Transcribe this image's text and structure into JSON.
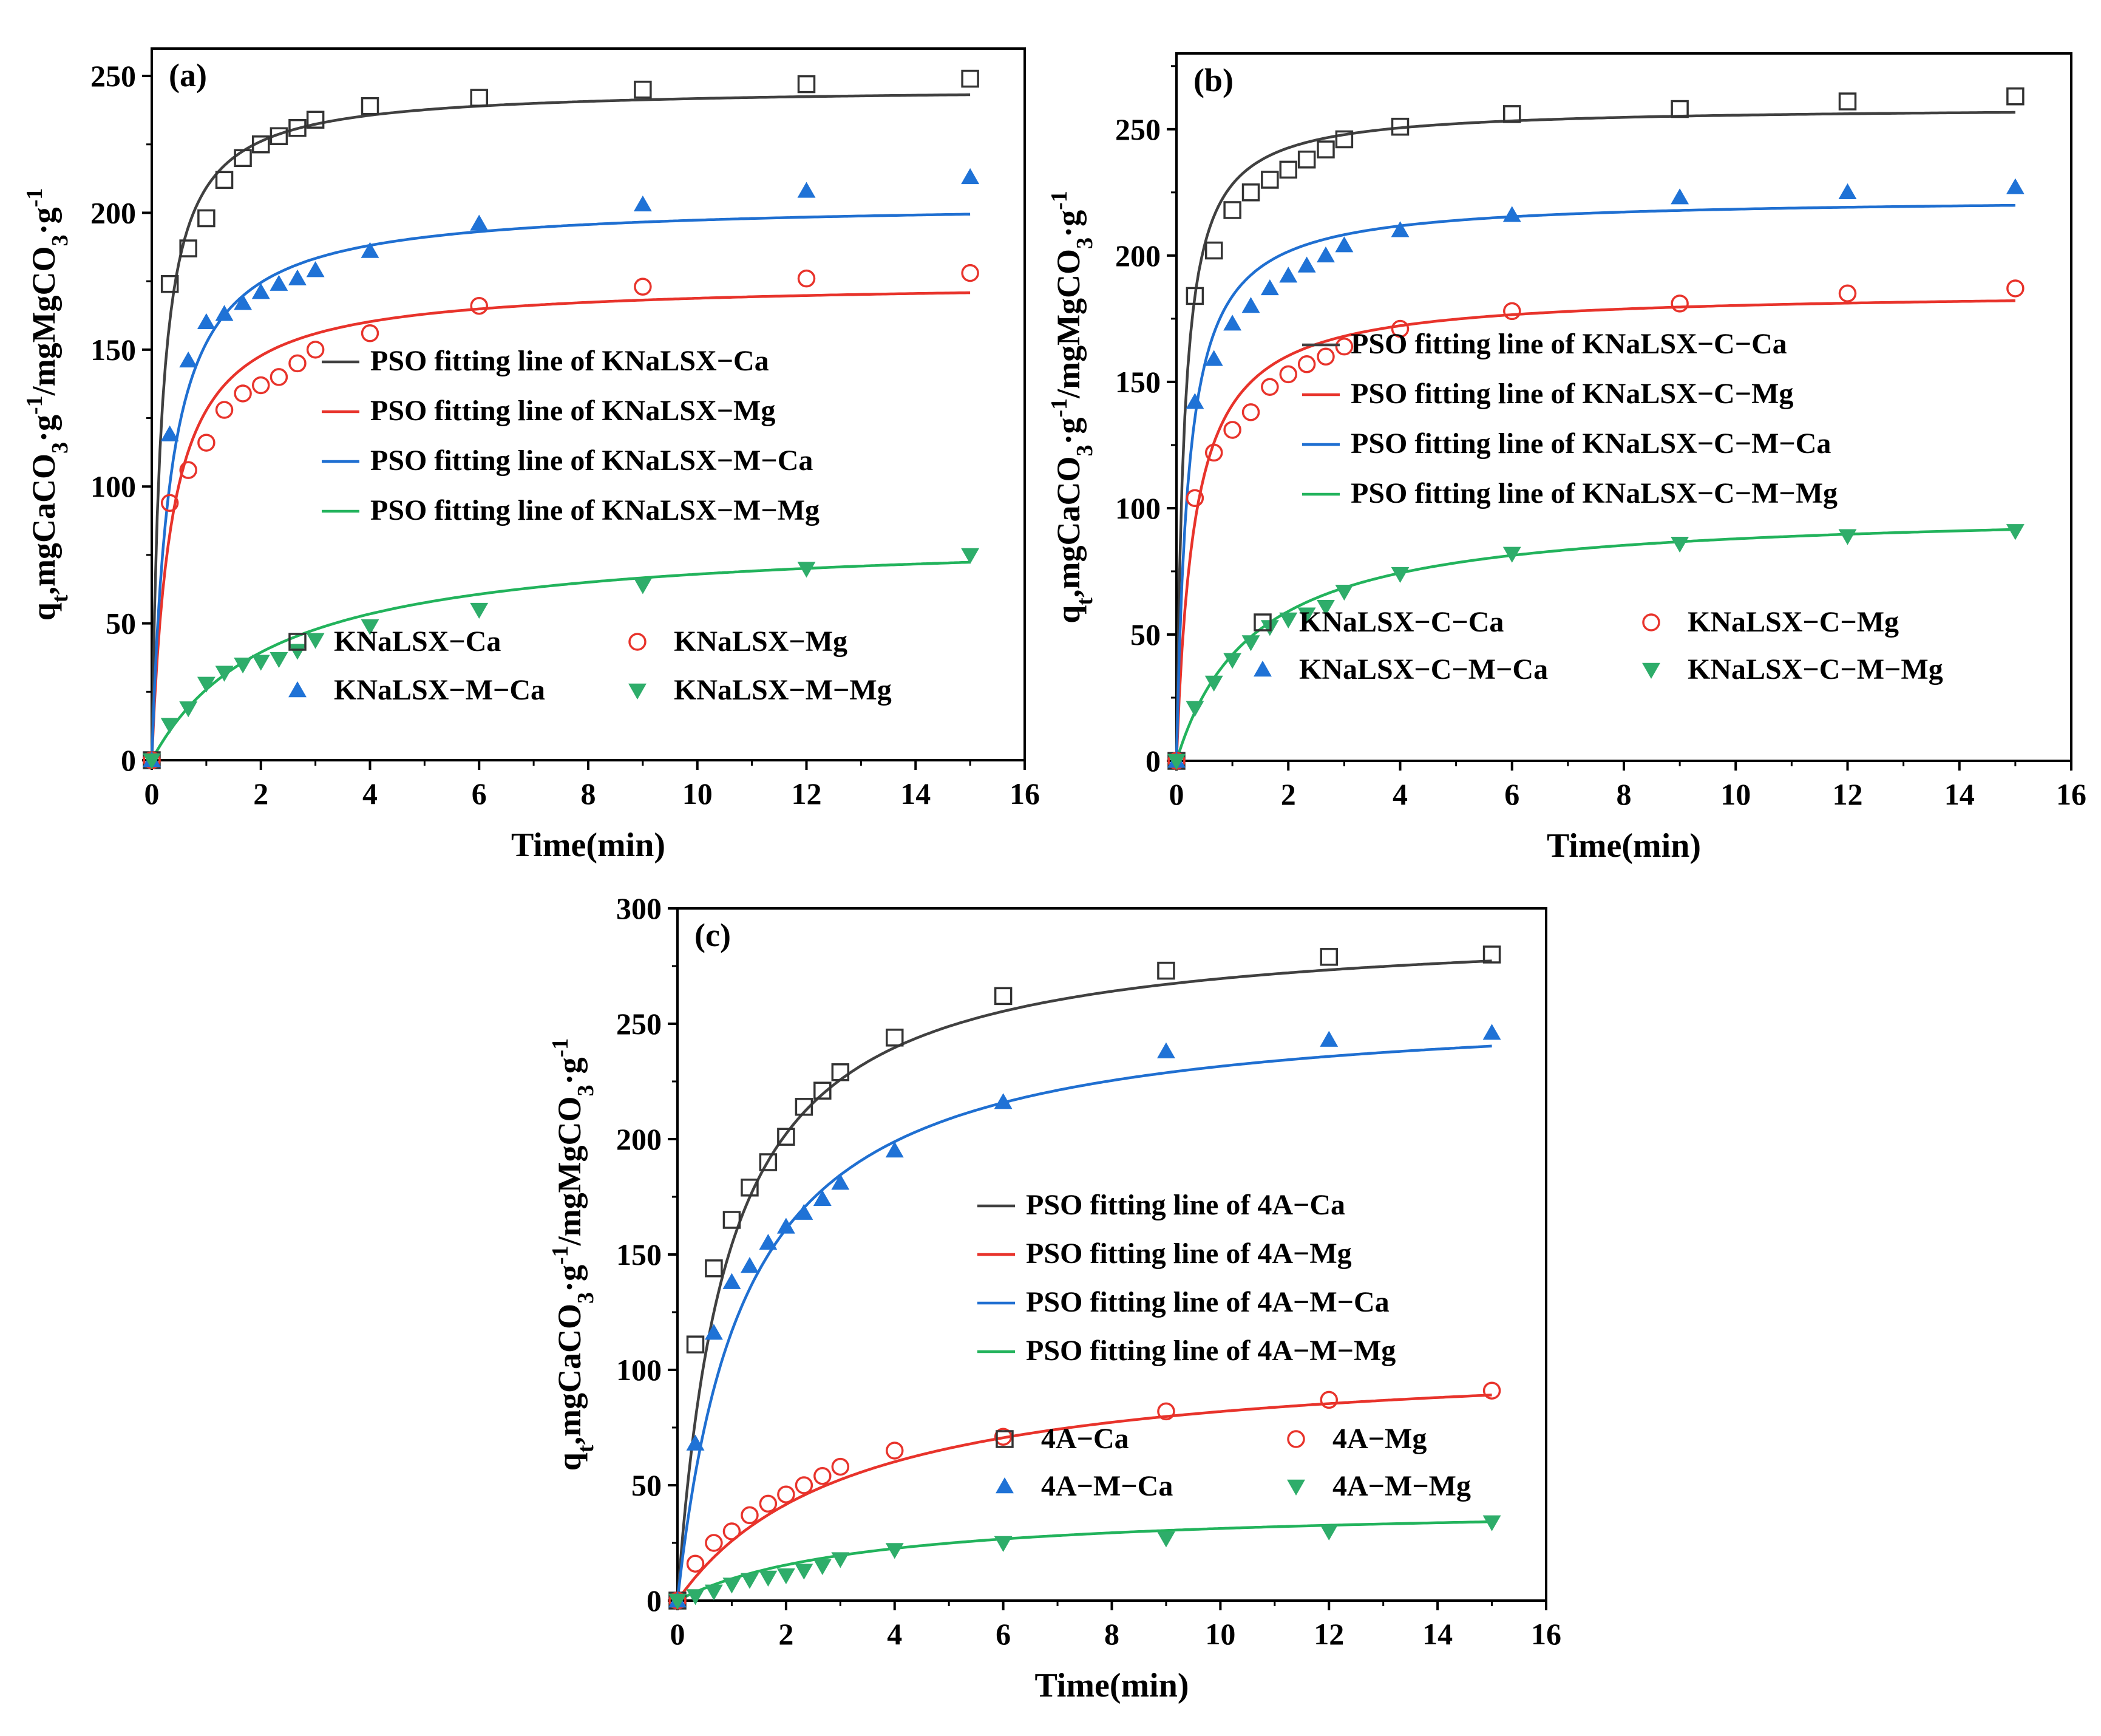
{
  "figure": {
    "background": "#ffffff",
    "panels_count": 3
  },
  "colors": {
    "Ca": "#404040",
    "Mg": "#e8332b",
    "MCa": "#1f6fd1",
    "MMg": "#22b35c",
    "MCa_marker": "#1f72d6",
    "MMg_marker": "#2ead6a"
  },
  "chart_data": [
    {
      "type": "scatter",
      "panel_label": "(a)",
      "xlabel": "Time(min)",
      "ylabel": "q_t,mgCaCO_3·g^-1/mgMgCO_3·g^-1",
      "xlim": [
        0,
        16
      ],
      "ylim": [
        0,
        260
      ],
      "xticks": [
        0,
        2,
        4,
        6,
        8,
        10,
        12,
        14,
        16
      ],
      "yticks": [
        0,
        50,
        100,
        150,
        200,
        250
      ],
      "grid": false,
      "fit_legend": [
        "PSO fitting line of KNaLSX−Ca",
        "PSO fitting line of KNaLSX−Mg",
        "PSO fitting line of KNaLSX−M−Ca",
        "PSO fitting line of KNaLSX−M−Mg"
      ],
      "series": [
        {
          "name": "KNaLSX−Ca",
          "key": "Ca",
          "marker": "square",
          "x": [
            0,
            0.33,
            0.67,
            1,
            1.33,
            1.67,
            2,
            2.33,
            2.67,
            3,
            4,
            6,
            9,
            12,
            15
          ],
          "y": [
            0,
            174,
            187,
            198,
            212,
            220,
            225,
            228,
            231,
            234,
            239,
            242,
            245,
            247,
            249
          ],
          "fit": {
            "qe": 246,
            "k": 0.0231
          }
        },
        {
          "name": "KNaLSX−Mg",
          "key": "Mg",
          "marker": "circle",
          "x": [
            0,
            0.33,
            0.67,
            1,
            1.33,
            1.67,
            2,
            2.33,
            2.67,
            3,
            4,
            6,
            9,
            12,
            15
          ],
          "y": [
            0,
            94,
            106,
            116,
            128,
            134,
            137,
            140,
            145,
            150,
            156,
            166,
            173,
            176,
            178
          ],
          "fit": {
            "qe": 175,
            "k": 0.0155
          }
        },
        {
          "name": "KNaLSX−M−Ca",
          "key": "MCa",
          "marker": "triangle-up",
          "x": [
            0,
            0.33,
            0.67,
            1,
            1.33,
            1.67,
            2,
            2.33,
            2.67,
            3,
            4,
            6,
            9,
            12,
            15
          ],
          "y": [
            0,
            119,
            146,
            160,
            163,
            167,
            171,
            174,
            176,
            179,
            186,
            196,
            203,
            208,
            213
          ],
          "fit": {
            "qe": 204,
            "k": 0.0145
          }
        },
        {
          "name": "KNaLSX−M−Mg",
          "key": "MMg",
          "marker": "triangle-down",
          "x": [
            0,
            0.33,
            0.67,
            1,
            1.33,
            1.67,
            2,
            2.33,
            2.67,
            3,
            4,
            6,
            9,
            12,
            15
          ],
          "y": [
            0,
            13,
            19,
            28,
            32,
            35,
            36,
            37,
            40,
            44,
            49,
            55,
            64,
            70,
            75
          ],
          "fit": {
            "qe": 83,
            "k": 0.00545
          }
        }
      ]
    },
    {
      "type": "scatter",
      "panel_label": "(b)",
      "xlabel": "Time(min)",
      "ylabel": "q_t,mgCaCO_3·g^-1/mgMgCO_3·g^-1",
      "xlim": [
        0,
        16
      ],
      "ylim": [
        0,
        280
      ],
      "xticks": [
        0,
        2,
        4,
        6,
        8,
        10,
        12,
        14,
        16
      ],
      "yticks": [
        0,
        50,
        100,
        150,
        200,
        250
      ],
      "grid": false,
      "fit_legend": [
        "PSO fitting line of KNaLSX−C−Ca",
        "PSO fitting line of KNaLSX−C−Mg",
        "PSO fitting line of KNaLSX−C−M−Ca",
        "PSO fitting line of KNaLSX−C−M−Mg"
      ],
      "series": [
        {
          "name": "KNaLSX−C−Ca",
          "key": "Ca",
          "marker": "square",
          "x": [
            0,
            0.33,
            0.67,
            1,
            1.33,
            1.67,
            2,
            2.33,
            2.67,
            3,
            4,
            6,
            9,
            12,
            15
          ],
          "y": [
            0,
            184,
            202,
            218,
            225,
            230,
            234,
            238,
            242,
            246,
            251,
            256,
            258,
            261,
            263
          ],
          "fit": {
            "qe": 259,
            "k": 0.0286
          }
        },
        {
          "name": "KNaLSX−C−Mg",
          "key": "Mg",
          "marker": "circle",
          "x": [
            0,
            0.33,
            0.67,
            1,
            1.33,
            1.67,
            2,
            2.33,
            2.67,
            3,
            4,
            6,
            9,
            12,
            15
          ],
          "y": [
            0,
            104,
            122,
            131,
            138,
            148,
            153,
            157,
            160,
            164,
            171,
            178,
            181,
            185,
            187
          ],
          "fit": {
            "qe": 186,
            "k": 0.0168
          }
        },
        {
          "name": "KNaLSX−C−M−Ca",
          "key": "MCa",
          "marker": "triangle-up",
          "x": [
            0,
            0.33,
            0.67,
            1,
            1.33,
            1.67,
            2,
            2.33,
            2.67,
            3,
            4,
            6,
            9,
            12,
            15
          ],
          "y": [
            0,
            142,
            159,
            173,
            180,
            187,
            192,
            196,
            200,
            204,
            210,
            216,
            223,
            225,
            227
          ],
          "fit": {
            "qe": 223,
            "k": 0.0211
          }
        },
        {
          "name": "KNaLSX−C−M−Mg",
          "key": "MMg",
          "marker": "triangle-down",
          "x": [
            0,
            0.33,
            0.67,
            1,
            1.33,
            1.67,
            2,
            2.33,
            2.67,
            3,
            4,
            6,
            9,
            12,
            15
          ],
          "y": [
            0,
            21,
            31,
            40,
            47,
            53,
            56,
            58,
            61,
            67,
            74,
            82,
            86,
            89,
            91
          ],
          "fit": {
            "qe": 100,
            "k": 0.00725
          }
        }
      ]
    },
    {
      "type": "scatter",
      "panel_label": "(c)",
      "xlabel": "Time(min)",
      "ylabel": "q_t,mgCaCO_3·g^-1/mgMgCO_3·g^-1",
      "xlim": [
        0,
        16
      ],
      "ylim": [
        0,
        300
      ],
      "xticks": [
        0,
        2,
        4,
        6,
        8,
        10,
        12,
        14,
        16
      ],
      "yticks": [
        0,
        50,
        100,
        150,
        200,
        250,
        300
      ],
      "grid": false,
      "fit_legend": [
        "PSO fitting line of 4A−Ca",
        "PSO fitting line of 4A−Mg",
        "PSO fitting line of 4A−M−Ca",
        "PSO fitting line of 4A−M−Mg"
      ],
      "series": [
        {
          "name": "4A−Ca",
          "key": "Ca",
          "marker": "square",
          "x": [
            0,
            0.33,
            0.67,
            1,
            1.33,
            1.67,
            2,
            2.33,
            2.67,
            3,
            4,
            6,
            9,
            12,
            15
          ],
          "y": [
            0,
            111,
            144,
            165,
            179,
            190,
            201,
            214,
            221,
            229,
            244,
            262,
            273,
            279,
            280
          ],
          "fit": {
            "qe": 294,
            "k": 0.00375
          }
        },
        {
          "name": "4A−Mg",
          "key": "Mg",
          "marker": "circle",
          "x": [
            0,
            0.33,
            0.67,
            1,
            1.33,
            1.67,
            2,
            2.33,
            2.67,
            3,
            4,
            6,
            9,
            12,
            15
          ],
          "y": [
            0,
            16,
            25,
            30,
            37,
            42,
            46,
            50,
            54,
            58,
            65,
            71,
            82,
            87,
            91
          ],
          "fit": {
            "qe": 108,
            "k": 0.00291
          }
        },
        {
          "name": "4A−M−Ca",
          "key": "MCa",
          "marker": "triangle-up",
          "x": [
            0,
            0.33,
            0.67,
            1,
            1.33,
            1.67,
            2,
            2.33,
            2.67,
            3,
            4,
            6,
            9,
            12,
            15
          ],
          "y": [
            0,
            68,
            116,
            138,
            145,
            155,
            162,
            168,
            174,
            181,
            195,
            216,
            238,
            243,
            246
          ],
          "fit": {
            "qe": 260,
            "k": 0.00313
          }
        },
        {
          "name": "4A−M−Mg",
          "key": "MMg",
          "marker": "triangle-down",
          "x": [
            0,
            0.33,
            0.67,
            1,
            1.33,
            1.67,
            2,
            2.33,
            2.67,
            3,
            4,
            6,
            9,
            12,
            15
          ],
          "y": [
            0,
            2,
            4,
            7,
            9,
            10,
            11,
            13,
            15,
            18,
            22,
            25,
            27,
            30,
            34
          ],
          "fit": {
            "qe": 42,
            "k": 0.00693
          }
        }
      ]
    }
  ]
}
